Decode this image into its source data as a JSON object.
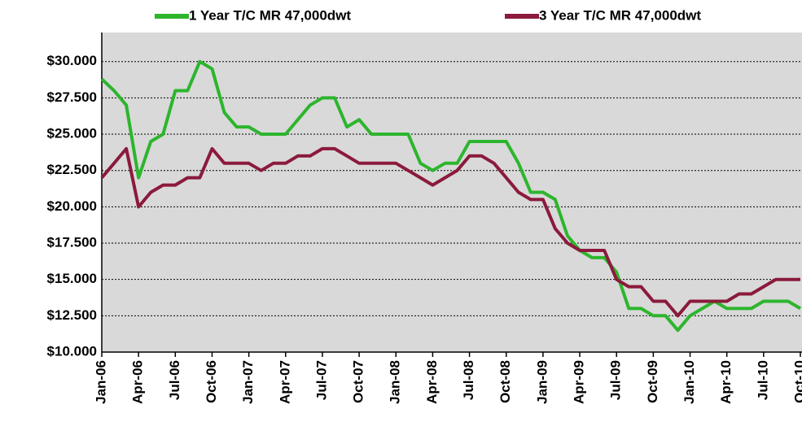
{
  "chart_data": {
    "type": "line",
    "categories": [
      "Jan-06",
      null,
      null,
      "Apr-06",
      null,
      null,
      "Jul-06",
      null,
      null,
      "Oct-06",
      null,
      null,
      "Jan-07",
      null,
      null,
      "Apr-07",
      null,
      null,
      "Jul-07",
      null,
      null,
      "Oct-07",
      null,
      null,
      "Jan-08",
      null,
      null,
      "Apr-08",
      null,
      null,
      "Jul-08",
      null,
      null,
      "Oct-08",
      null,
      null,
      "Jan-09",
      null,
      null,
      "Apr-09",
      null,
      null,
      "Jul-09",
      null,
      null,
      "Oct-09",
      null,
      null,
      "Jan-10",
      null,
      null,
      "Apr-10",
      null,
      null,
      "Jul-10",
      null,
      null,
      "Oct-10"
    ],
    "series": [
      {
        "name": "1 Year T/C MR 47,000dwt",
        "color": "#2db52d",
        "values": [
          28800,
          28000,
          27000,
          22000,
          24500,
          25000,
          28000,
          28000,
          30000,
          29500,
          26500,
          25500,
          25500,
          25000,
          25000,
          25000,
          26000,
          27000,
          27500,
          27500,
          25500,
          26000,
          25000,
          25000,
          25000,
          25000,
          23000,
          22500,
          23000,
          23000,
          24500,
          24500,
          24500,
          24500,
          23000,
          21000,
          21000,
          20500,
          18000,
          17000,
          16500,
          16500,
          15500,
          13000,
          13000,
          12500,
          12500,
          11500,
          12500,
          13000,
          13500,
          13000,
          13000,
          13000,
          13500,
          13500,
          13500,
          13000
        ]
      },
      {
        "name": "3 Year T/C MR 47,000dwt",
        "color": "#8b1a3c",
        "values": [
          22000,
          23000,
          24000,
          20000,
          21000,
          21500,
          21500,
          22000,
          22000,
          24000,
          23000,
          23000,
          23000,
          22500,
          23000,
          23000,
          23500,
          23500,
          24000,
          24000,
          23500,
          23000,
          23000,
          23000,
          23000,
          22500,
          22000,
          21500,
          22000,
          22500,
          23500,
          23500,
          23000,
          22000,
          21000,
          20500,
          20500,
          18500,
          17500,
          17000,
          17000,
          17000,
          15000,
          14500,
          14500,
          13500,
          13500,
          12500,
          13500,
          13500,
          13500,
          13500,
          14000,
          14000,
          14500,
          15000,
          15000,
          15000
        ]
      }
    ],
    "ylim": [
      10000,
      32000
    ],
    "yticks": [
      {
        "value": 10000,
        "label": "$10.000"
      },
      {
        "value": 12500,
        "label": "$12.500"
      },
      {
        "value": 15000,
        "label": "$15.000"
      },
      {
        "value": 17500,
        "label": "$17.500"
      },
      {
        "value": 20000,
        "label": "$20.000"
      },
      {
        "value": 22500,
        "label": "$22.500"
      },
      {
        "value": 25000,
        "label": "$25.000"
      },
      {
        "value": 27500,
        "label": "$27.500"
      },
      {
        "value": 30000,
        "label": "$30.000"
      }
    ],
    "grid": true,
    "legend": "top",
    "background": "#d9d9d9"
  }
}
